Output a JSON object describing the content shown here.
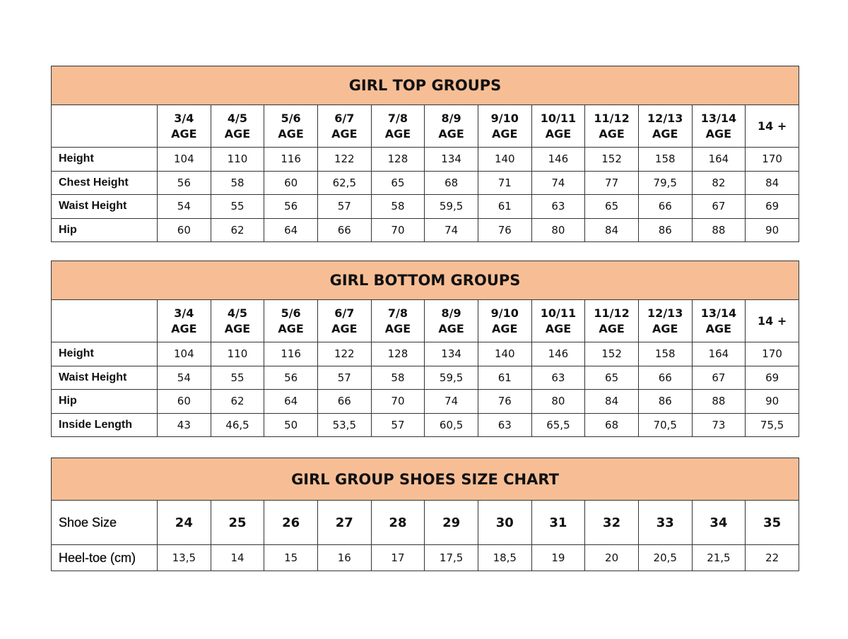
{
  "top": {
    "title": "GIRL TOP GROUPS",
    "columns": [
      [
        "3/4",
        "AGE"
      ],
      [
        "4/5",
        "AGE"
      ],
      [
        "5/6",
        "AGE"
      ],
      [
        "6/7",
        "AGE"
      ],
      [
        "7/8",
        "AGE"
      ],
      [
        "8/9",
        "AGE"
      ],
      [
        "9/10",
        "AGE"
      ],
      [
        "10/11",
        "AGE"
      ],
      [
        "11/12",
        "AGE"
      ],
      [
        "12/13",
        "AGE"
      ],
      [
        "13/14",
        "AGE"
      ],
      [
        "14 +",
        ""
      ]
    ],
    "rows": [
      {
        "label": "Height",
        "values": [
          "104",
          "110",
          "116",
          "122",
          "128",
          "134",
          "140",
          "146",
          "152",
          "158",
          "164",
          "170"
        ]
      },
      {
        "label": "Chest Height",
        "values": [
          "56",
          "58",
          "60",
          "62,5",
          "65",
          "68",
          "71",
          "74",
          "77",
          "79,5",
          "82",
          "84"
        ]
      },
      {
        "label": "Waist Height",
        "values": [
          "54",
          "55",
          "56",
          "57",
          "58",
          "59,5",
          "61",
          "63",
          "65",
          "66",
          "67",
          "69"
        ]
      },
      {
        "label": "Hip",
        "values": [
          "60",
          "62",
          "64",
          "66",
          "70",
          "74",
          "76",
          "80",
          "84",
          "86",
          "88",
          "90"
        ]
      }
    ]
  },
  "bottom": {
    "title": "GIRL BOTTOM GROUPS",
    "columns": [
      [
        "3/4",
        "AGE"
      ],
      [
        "4/5",
        "AGE"
      ],
      [
        "5/6",
        "AGE"
      ],
      [
        "6/7",
        "AGE"
      ],
      [
        "7/8",
        "AGE"
      ],
      [
        "8/9",
        "AGE"
      ],
      [
        "9/10",
        "AGE"
      ],
      [
        "10/11",
        "AGE"
      ],
      [
        "11/12",
        "AGE"
      ],
      [
        "12/13",
        "AGE"
      ],
      [
        "13/14",
        "AGE"
      ],
      [
        "14 +",
        ""
      ]
    ],
    "rows": [
      {
        "label": "Height",
        "values": [
          "104",
          "110",
          "116",
          "122",
          "128",
          "134",
          "140",
          "146",
          "152",
          "158",
          "164",
          "170"
        ]
      },
      {
        "label": "Waist Height",
        "values": [
          "54",
          "55",
          "56",
          "57",
          "58",
          "59,5",
          "61",
          "63",
          "65",
          "66",
          "67",
          "69"
        ]
      },
      {
        "label": "Hip",
        "values": [
          "60",
          "62",
          "64",
          "66",
          "70",
          "74",
          "76",
          "80",
          "84",
          "86",
          "88",
          "90"
        ]
      },
      {
        "label": "Inside Length",
        "values": [
          "43",
          "46,5",
          "50",
          "53,5",
          "57",
          "60,5",
          "63",
          "65,5",
          "68",
          "70,5",
          "73",
          "75,5"
        ]
      }
    ]
  },
  "shoes": {
    "title": "GIRL GROUP SHOES SIZE CHART",
    "size_label": "Shoe Size",
    "sizes": [
      "24",
      "25",
      "26",
      "27",
      "28",
      "29",
      "30",
      "31",
      "32",
      "33",
      "34",
      "35"
    ],
    "heel_label": "Heel-toe (cm)",
    "heel": [
      "13,5",
      "14",
      "15",
      "16",
      "17",
      "17,5",
      "18,5",
      "19",
      "20",
      "20,5",
      "21,5",
      "22"
    ]
  },
  "colors": {
    "header_bg": "#F7BE96",
    "border": "#333333"
  }
}
